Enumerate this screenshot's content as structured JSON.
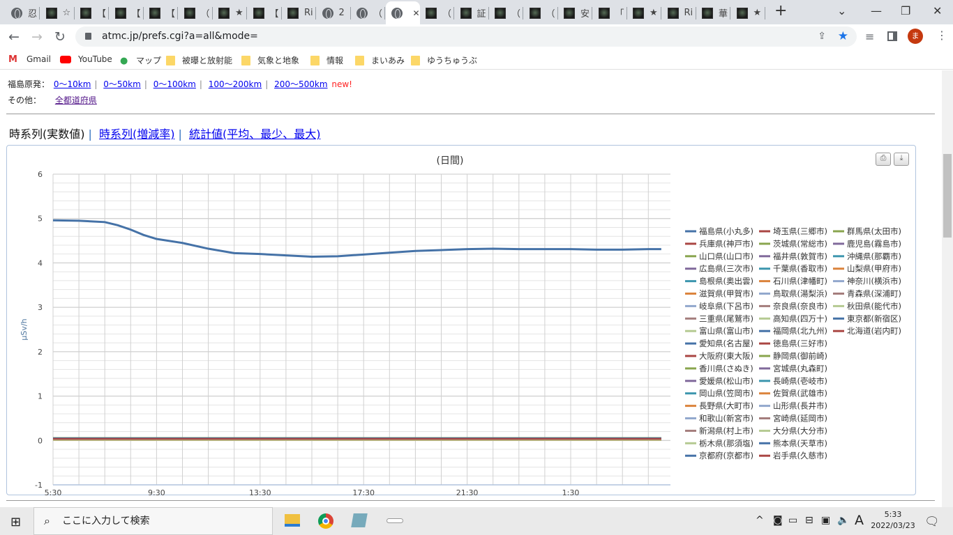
{
  "browser": {
    "tabs": [
      {
        "icon": "globe",
        "title": "忍"
      },
      {
        "icon": "image",
        "title": "☆"
      },
      {
        "icon": "image",
        "title": "【"
      },
      {
        "icon": "image",
        "title": "【"
      },
      {
        "icon": "image",
        "title": "【"
      },
      {
        "icon": "image",
        "title": "（"
      },
      {
        "icon": "image",
        "title": "★"
      },
      {
        "icon": "image",
        "title": "【"
      },
      {
        "icon": "image",
        "title": "Ri"
      },
      {
        "icon": "globe",
        "title": "2"
      },
      {
        "icon": "globe",
        "title": "（"
      },
      {
        "icon": "globe",
        "title": "",
        "active": true
      },
      {
        "icon": "image",
        "title": "（"
      },
      {
        "icon": "image",
        "title": "証"
      },
      {
        "icon": "image",
        "title": "（"
      },
      {
        "icon": "image",
        "title": "（"
      },
      {
        "icon": "image",
        "title": "安"
      },
      {
        "icon": "image",
        "title": "「"
      },
      {
        "icon": "image",
        "title": "★"
      },
      {
        "icon": "image",
        "title": "Ri"
      },
      {
        "icon": "image",
        "title": "華"
      },
      {
        "icon": "image",
        "title": "★"
      }
    ],
    "new_tab": "+",
    "url": "atmc.jp/prefs.cgi?a=all&mode=",
    "profile_initial": "ま",
    "bookmarks": [
      {
        "label": "Gmail",
        "icon": "gmail"
      },
      {
        "label": "YouTube",
        "icon": "youtube"
      },
      {
        "label": "マップ",
        "icon": "maps"
      },
      {
        "label": "被曝と放射能",
        "icon": "folder"
      },
      {
        "label": "気象と地象",
        "icon": "folder"
      },
      {
        "label": "情報",
        "icon": "folder"
      },
      {
        "label": "まいあみ",
        "icon": "folder"
      },
      {
        "label": "ゆうちゅうぶ",
        "icon": "folder"
      }
    ]
  },
  "page": {
    "fukushima_label": "福島原発：",
    "fukushima_links": [
      "0～10km",
      "0～50km",
      "0～100km",
      "100～200km",
      "200～500km"
    ],
    "new_badge": "new!",
    "other_label": "その他：",
    "other_link": "全都道府県",
    "views": {
      "current": "時系列(実数値)",
      "links": [
        "時系列(増減率)",
        "統計値(平均、最少、最大)"
      ]
    }
  },
  "chart_data": {
    "type": "line",
    "title": "(日間)",
    "ylabel": "μSv/h",
    "ylim": [
      -1,
      6
    ],
    "yticks": [
      6,
      5,
      4,
      3,
      2,
      1,
      0,
      -1
    ],
    "xticks": [
      "5:30",
      "9:30",
      "13:30",
      "17:30",
      "21:30",
      "1:30"
    ],
    "grid": true,
    "legend": "right",
    "x": [
      "5:30",
      "6:30",
      "7:30",
      "8:00",
      "8:30",
      "9:00",
      "9:30",
      "10:30",
      "11:30",
      "12:30",
      "13:30",
      "14:30",
      "15:30",
      "16:30",
      "17:30",
      "18:30",
      "19:30",
      "20:30",
      "21:30",
      "22:30",
      "23:30",
      "0:30",
      "1:30",
      "2:30",
      "3:30",
      "4:30",
      "5:00"
    ],
    "palette": [
      "#4572A7",
      "#AA4643",
      "#89A54E",
      "#80699B",
      "#3D96AE",
      "#DB843D",
      "#92A8CD",
      "#A47D7C",
      "#B5CA92"
    ],
    "main_series": {
      "name": "福島県(小丸多)",
      "values": [
        4.96,
        4.95,
        4.92,
        4.85,
        4.75,
        4.63,
        4.54,
        4.45,
        4.32,
        4.22,
        4.2,
        4.17,
        4.14,
        4.15,
        4.19,
        4.23,
        4.27,
        4.29,
        4.31,
        4.32,
        4.31,
        4.31,
        4.31,
        4.3,
        4.3,
        4.31,
        4.31
      ]
    },
    "series": [
      "福島県(小丸多)",
      "兵庫県(神戸市)",
      "山口県(山口市)",
      "広島県(三次市)",
      "島根県(奥出雲)",
      "滋賀県(甲賀市)",
      "岐阜県(下呂市)",
      "三重県(尾鷲市)",
      "富山県(富山市)",
      "愛知県(名古屋)",
      "大阪府(東大阪)",
      "香川県(さぬき)",
      "愛媛県(松山市)",
      "岡山県(笠岡市)",
      "長野県(大町市)",
      "和歌山(新宮市)",
      "新潟県(村上市)",
      "栃木県(那須塩)",
      "京都府(京都市)",
      "埼玉県(三郷市)",
      "茨城県(常総市)",
      "福井県(敦賀市)",
      "千葉県(香取市)",
      "石川県(津幡町)",
      "鳥取県(湯梨浜)",
      "奈良県(奈良市)",
      "高知県(四万十)",
      "福岡県(北九州)",
      "徳島県(三好市)",
      "静岡県(御前崎)",
      "宮城県(丸森町)",
      "長崎県(壱岐市)",
      "佐賀県(武雄市)",
      "山形県(長井市)",
      "宮崎県(延岡市)",
      "大分県(大分市)",
      "熊本県(天草市)",
      "岩手県(久慈市)",
      "群馬県(太田市)",
      "鹿児島(霧島市)",
      "沖縄県(那覇市)",
      "山梨県(甲府市)",
      "神奈川(横浜市)",
      "青森県(深浦町)",
      "秋田県(能代市)",
      "東京都(新宿区)",
      "北海道(岩内町)"
    ],
    "other_series_level": 0.05
  },
  "taskbar": {
    "search_placeholder": "ここに入力して検索",
    "time": "5:33",
    "date": "2022/03/23",
    "ime": "A"
  }
}
